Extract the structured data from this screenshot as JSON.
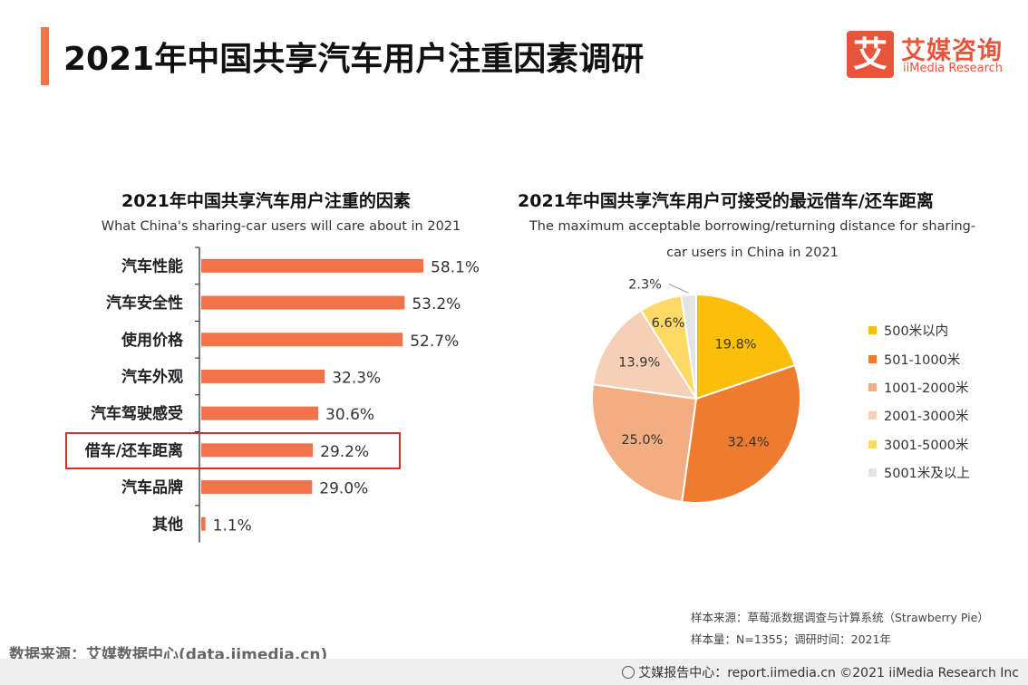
{
  "page_title": "2021年中国共享汽车用户注重因素调研",
  "logo": {
    "mark": "艾",
    "cn": "艾媒咨询",
    "en": "iiMedia Research",
    "color": "#e8553a"
  },
  "chart_data": [
    {
      "type": "bar",
      "orientation": "horizontal",
      "title": "2021年中国共享汽车用户注重的因素",
      "subtitle": "What China's sharing-car users will care about in 2021",
      "categories": [
        "汽车性能",
        "汽车安全性",
        "使用价格",
        "汽车外观",
        "汽车驾驶感受",
        "借车/还车距离",
        "汽车品牌",
        "其他"
      ],
      "values": [
        58.1,
        53.2,
        52.7,
        32.3,
        30.6,
        29.2,
        29.0,
        1.1
      ],
      "value_labels": [
        "58.1%",
        "53.2%",
        "52.7%",
        "32.3%",
        "30.6%",
        "29.2%",
        "29.0%",
        "1.1%"
      ],
      "highlighted_category": "借车/还车距离",
      "bar_color": "#f0734a",
      "highlight_color": "#d32f2f",
      "grid": false
    },
    {
      "type": "pie",
      "title": "2021年中国共享汽车用户可接受的最远借车/还车距离",
      "subtitle_lines": [
        "The maximum acceptable borrowing/returning distance for sharing-",
        "car users in China in 2021"
      ],
      "categories": [
        "500米以内",
        "501-1000米",
        "1001-2000米",
        "2001-3000米",
        "3001-5000米",
        "5001米及以上"
      ],
      "values": [
        19.8,
        32.4,
        25.0,
        13.9,
        6.6,
        2.3
      ],
      "value_labels": [
        "19.8%",
        "32.4%",
        "25.0%",
        "13.9%",
        "6.6%",
        "2.3%"
      ],
      "colors": [
        "#fbbe0a",
        "#ed7c31",
        "#f2ae82",
        "#f6d0b6",
        "#ffd966",
        "#e4e4e4"
      ],
      "legend_position": "right"
    }
  ],
  "notes": {
    "sample_source": "样本来源：草莓派数据调查与计算系统（Strawberry Pie）",
    "sample_size": "样本量：N=1355；调研时间：2021年"
  },
  "data_source": "数据来源：艾媒数据中心(data.iimedia.cn)",
  "footer": "艾媒报告中心：report.iimedia.cn  ©2021  iiMedia Research  Inc"
}
